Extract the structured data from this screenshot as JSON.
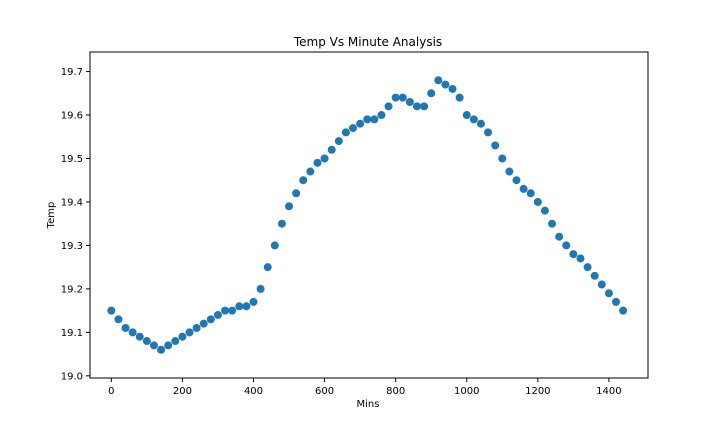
{
  "chart_data": {
    "type": "scatter",
    "title": "Temp Vs Minute Analysis",
    "xlabel": "Mins",
    "ylabel": "Temp",
    "xlim": [
      -60,
      1510
    ],
    "ylim": [
      18.995,
      19.745
    ],
    "xticks": [
      0,
      200,
      400,
      600,
      800,
      1000,
      1200,
      1400
    ],
    "yticks": [
      19.0,
      19.1,
      19.2,
      19.3,
      19.4,
      19.5,
      19.6,
      19.7
    ],
    "ytick_labels": [
      "19.0",
      "19.1",
      "19.2",
      "19.3",
      "19.4",
      "19.5",
      "19.6",
      "19.7"
    ],
    "grid": false,
    "marker_color": "#1f77b4",
    "series": [
      {
        "x": [
          0,
          20,
          40,
          60,
          80,
          100,
          120,
          140,
          160,
          180,
          200,
          220,
          240,
          260,
          280,
          300,
          320,
          340,
          360,
          380,
          400,
          420,
          440,
          460,
          480,
          500,
          520,
          540,
          560,
          580,
          600,
          620,
          640,
          660,
          680,
          700,
          720,
          740,
          760,
          780,
          800,
          820,
          840,
          860,
          880,
          900,
          920,
          940,
          960,
          980,
          1000,
          1020,
          1040,
          1060,
          1080,
          1100,
          1120,
          1140,
          1160,
          1180,
          1200,
          1220,
          1240,
          1260,
          1280,
          1300,
          1320,
          1340,
          1360,
          1380,
          1400,
          1420,
          1440
        ],
        "y": [
          19.15,
          19.13,
          19.11,
          19.1,
          19.09,
          19.08,
          19.07,
          19.06,
          19.07,
          19.08,
          19.09,
          19.1,
          19.11,
          19.12,
          19.13,
          19.14,
          19.15,
          19.15,
          19.16,
          19.16,
          19.17,
          19.2,
          19.25,
          19.3,
          19.35,
          19.39,
          19.42,
          19.45,
          19.47,
          19.49,
          19.5,
          19.52,
          19.54,
          19.56,
          19.57,
          19.58,
          19.59,
          19.59,
          19.6,
          19.62,
          19.64,
          19.64,
          19.63,
          19.62,
          19.62,
          19.65,
          19.68,
          19.67,
          19.66,
          19.64,
          19.6,
          19.59,
          19.58,
          19.56,
          19.53,
          19.5,
          19.47,
          19.45,
          19.43,
          19.42,
          19.4,
          19.38,
          19.35,
          19.32,
          19.3,
          19.28,
          19.27,
          19.25,
          19.23,
          19.21,
          19.19,
          19.17,
          19.15
        ]
      }
    ]
  }
}
